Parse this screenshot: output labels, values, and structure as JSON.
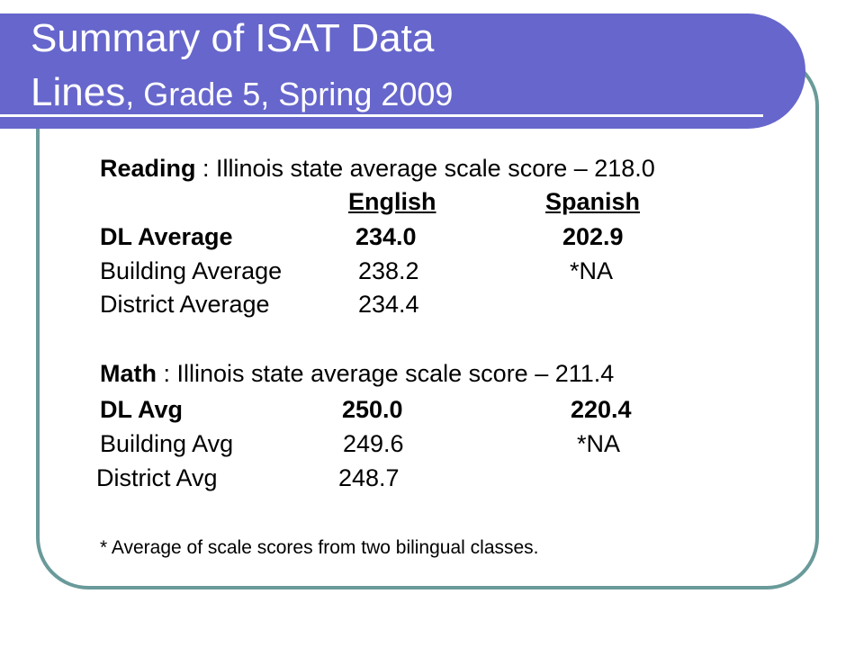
{
  "slide": {
    "title_line1": "Summary of ISAT Data",
    "title_line2_big": "Lines",
    "title_line2_small": ", Grade 5, Spring 2009"
  },
  "reading": {
    "label": "Reading",
    "description": " : Illinois state average scale score – 218.0",
    "header_english": "English",
    "header_spanish": "Spanish",
    "rows": [
      {
        "label": "DL Average",
        "english": "234.0",
        "spanish": "202.9"
      },
      {
        "label": "Building Average",
        "english": "238.2",
        "spanish": "*NA"
      },
      {
        "label": "District Average",
        "english": "234.4",
        "spanish": ""
      }
    ]
  },
  "math": {
    "label": "Math",
    "description": " :  Illinois state average scale score – 211.4",
    "rows": [
      {
        "label": "DL Avg",
        "english": "250.0",
        "spanish": "220.4"
      },
      {
        "label": "Building Avg",
        "english": "249.6",
        "spanish": "*NA"
      },
      {
        "label": "District Avg",
        "english": "248.7",
        "spanish": ""
      }
    ]
  },
  "footnote": "* Average of scale scores from two bilingual classes."
}
